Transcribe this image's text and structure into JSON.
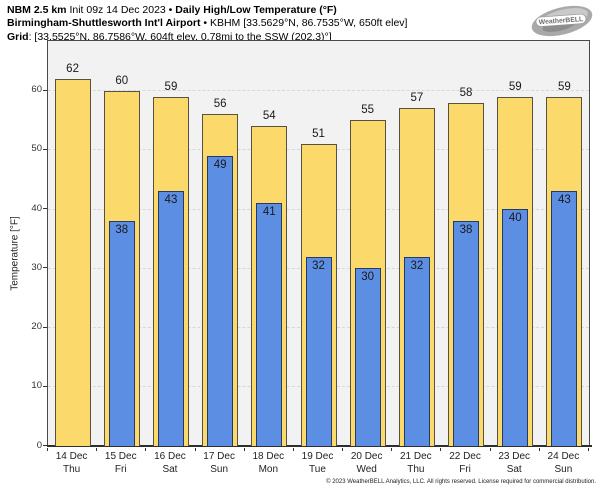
{
  "header": {
    "line1_bold1": "NBM 2.5 km",
    "line1_text1": " Init 09z 14 Dec 2023 • ",
    "line1_bold2": "Daily High/Low Temperature (°F)",
    "line2_bold": "Birmingham-Shuttlesworth Int'l Airport",
    "line2_text": " • KBHM [33.5629°N, 86.7535°W, 650ft elev]",
    "line3_bold": "Grid",
    "line3_text": ": [33.5525°N, 86.7586°W, 604ft elev, 0.78mi to the SSW (202.3)°]"
  },
  "logo": {
    "text": "WeatherBELL"
  },
  "footer": {
    "copyright": "© 2023 WeatherBELL Analytics, LLC. All rights reserved. License required for commercial distribution."
  },
  "chart_data": {
    "type": "bar",
    "title": "Daily High/Low Temperature (°F)",
    "ylabel": "Temperature [°F]",
    "ylim": [
      0,
      68.4
    ],
    "yticks": [
      0,
      10,
      20,
      30,
      40,
      50,
      60
    ],
    "grid": true,
    "legend_position": "none",
    "categories": [
      "14 Dec",
      "15 Dec",
      "16 Dec",
      "17 Dec",
      "18 Dec",
      "19 Dec",
      "20 Dec",
      "21 Dec",
      "22 Dec",
      "23 Dec",
      "24 Dec"
    ],
    "weekdays": [
      "Thu",
      "Fri",
      "Sat",
      "Sun",
      "Mon",
      "Tue",
      "Wed",
      "Thu",
      "Fri",
      "Sat",
      "Sun"
    ],
    "series": [
      {
        "name": "High",
        "color": "#fbda6b",
        "values": [
          62,
          60,
          59,
          56,
          54,
          51,
          55,
          57,
          58,
          59,
          59
        ]
      },
      {
        "name": "Low",
        "color": "#5c8ee4",
        "values": [
          null,
          38,
          43,
          49,
          41,
          32,
          30,
          32,
          38,
          40,
          43
        ]
      }
    ]
  }
}
